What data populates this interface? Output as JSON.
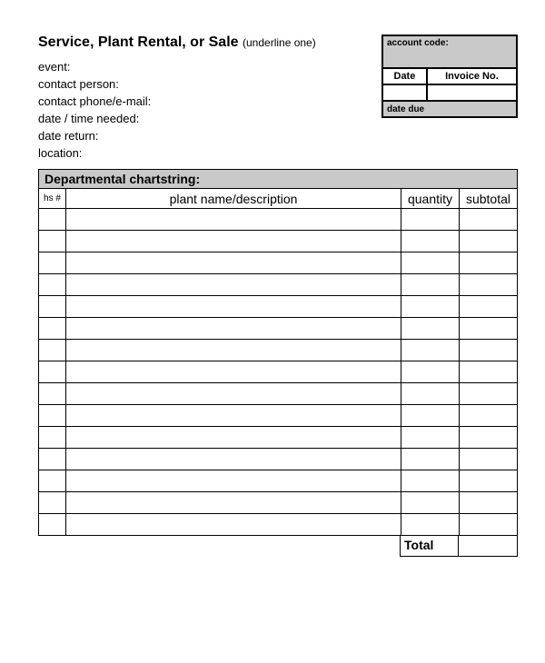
{
  "title": {
    "main": "Service,  Plant Rental,  or  Sale",
    "hint": "(underline one)"
  },
  "fields": {
    "event": "event:",
    "contact_person": "contact person:",
    "contact_phone": "contact phone/e-mail:",
    "date_time": "date / time needed:",
    "date_return": "date return:",
    "location": "location:"
  },
  "info_box": {
    "account_code": "account code:",
    "date": "Date",
    "invoice_no": "Invoice No.",
    "date_due": "date due"
  },
  "table": {
    "dept_header": "Departmental chartstring:",
    "columns": {
      "hs": "hs #",
      "desc": "plant name/description",
      "qty": "quantity",
      "sub": "subtotal"
    },
    "row_count": 15,
    "total_label": "Total"
  },
  "style": {
    "grey": "#c9c9c9",
    "border": "#000000",
    "bg": "#ffffff"
  }
}
